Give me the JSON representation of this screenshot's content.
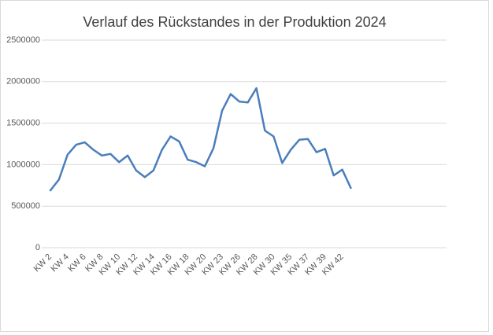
{
  "chart_data": {
    "type": "line",
    "title": "Verlauf des Rückstandes in der Produktion 2024",
    "categories": [
      "KW 2",
      null,
      "KW 4",
      null,
      "KW 6",
      null,
      "KW 8",
      null,
      "KW 10",
      null,
      "KW 12",
      null,
      "KW 14",
      null,
      "KW 16",
      null,
      "KW 18",
      null,
      "KW 20",
      null,
      "KW 23",
      null,
      "KW 26",
      null,
      "KW 28",
      null,
      "KW 30",
      null,
      "KW 35",
      null,
      "KW 37",
      null,
      "KW 39",
      null,
      "KW 42",
      null
    ],
    "values": [
      690000,
      820000,
      1120000,
      1240000,
      1270000,
      1180000,
      1110000,
      1130000,
      1030000,
      1110000,
      930000,
      850000,
      930000,
      1180000,
      1340000,
      1280000,
      1060000,
      1030000,
      980000,
      1200000,
      1650000,
      1850000,
      1760000,
      1750000,
      1920000,
      1410000,
      1340000,
      1020000,
      1180000,
      1300000,
      1310000,
      1150000,
      1190000,
      870000,
      940000,
      720000
    ],
    "color": "#4a7ebb",
    "ylim": [
      0,
      2500000
    ],
    "yticks": [
      0,
      500000,
      1000000,
      1500000,
      2000000,
      2500000
    ],
    "grid": true
  }
}
